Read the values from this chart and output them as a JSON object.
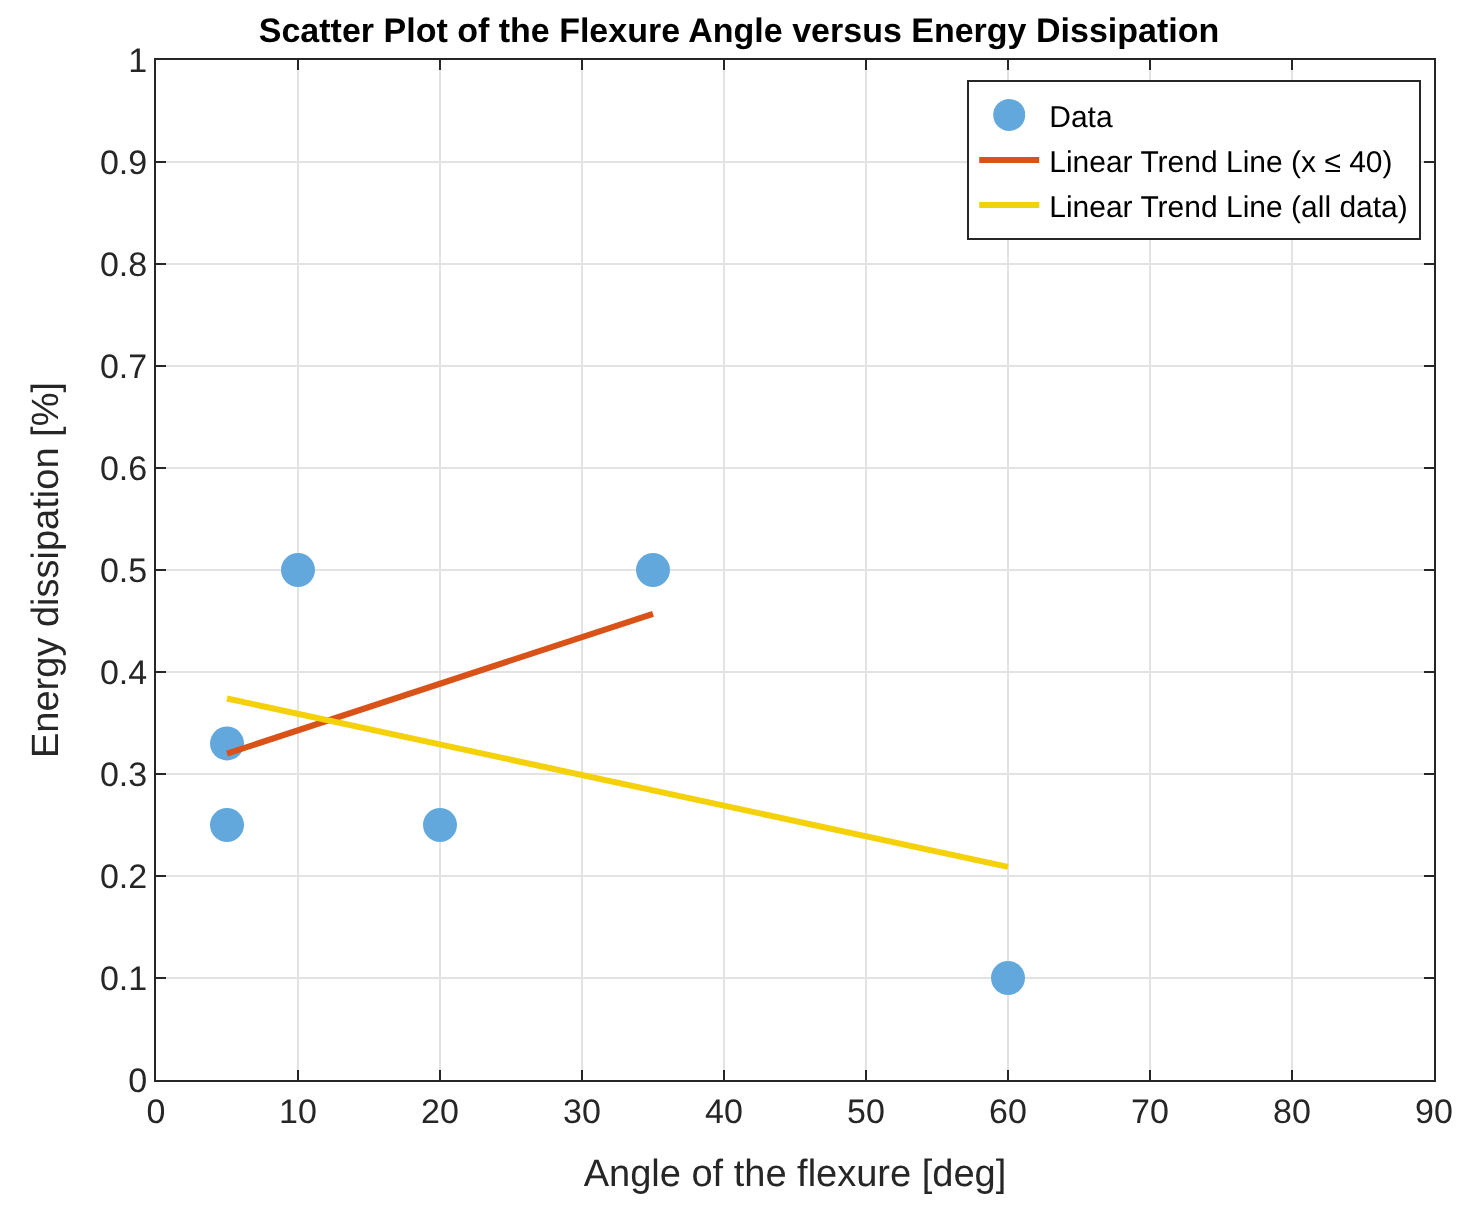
{
  "chart_data": {
    "type": "scatter",
    "title": "Scatter Plot of the Flexure Angle versus Energy Dissipation",
    "xlabel": "Angle of the flexure [deg]",
    "ylabel": "Energy dissipation [%]",
    "xlim": [
      0,
      90
    ],
    "xticks": [
      0,
      10,
      20,
      30,
      40,
      50,
      60,
      70,
      80,
      90
    ],
    "ylim": [
      0,
      1
    ],
    "yticks": [
      0,
      0.1,
      0.2,
      0.3,
      0.4,
      0.5,
      0.6,
      0.7,
      0.8,
      0.9,
      1
    ],
    "grid": true,
    "legend": "top right",
    "series": [
      {
        "name": "Data",
        "marker": "circle",
        "color": "#62a8dc",
        "x": [
          5,
          5,
          10,
          20,
          35,
          60
        ],
        "values": [
          0.33,
          0.25,
          0.5,
          0.25,
          0.5,
          0.1
        ]
      },
      {
        "name": "Linear Trend Line (x ≤ 40)",
        "type": "line",
        "marker": "none",
        "color": "#d95319",
        "x": [
          5,
          35
        ],
        "values": [
          0.32,
          0.457
        ]
      },
      {
        "name": "Linear Trend Line (all data)",
        "type": "line",
        "marker": "none",
        "color": "#f5d10a",
        "x": [
          5,
          60
        ],
        "values": [
          0.374,
          0.209
        ]
      }
    ]
  }
}
